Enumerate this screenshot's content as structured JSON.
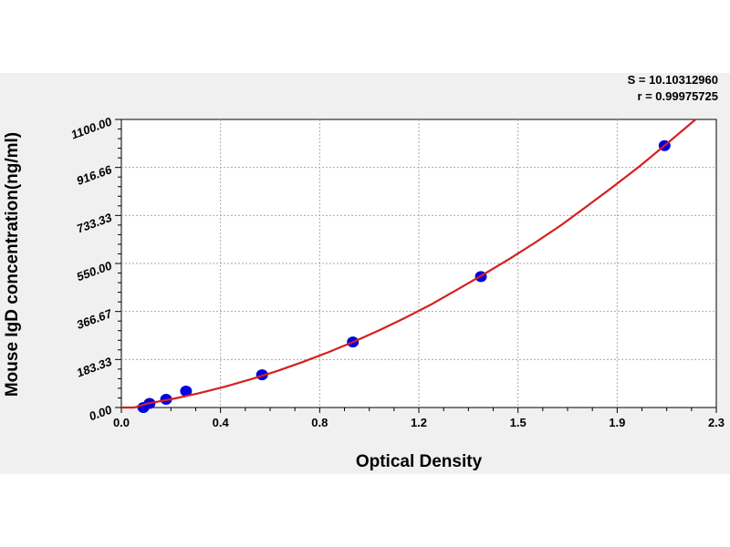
{
  "chart_data": {
    "type": "scatter",
    "title": "",
    "xlabel": "Optical Density",
    "ylabel": "Mouse IgD concentration(ng/ml)",
    "xlim": [
      0,
      2.3
    ],
    "ylim": [
      0,
      1100
    ],
    "grid": true,
    "x_tick_values": [
      0,
      0.3833,
      0.7667,
      1.15,
      1.5333,
      1.9167,
      2.3
    ],
    "x_tick_labels": [
      "0.0",
      "0.4",
      "0.8",
      "1.2",
      "1.5",
      "1.9",
      "2.3"
    ],
    "y_tick_values": [
      0,
      183.33,
      366.67,
      550,
      733.33,
      916.66,
      1100
    ],
    "y_tick_labels": [
      "0.00",
      "183.33",
      "366.67",
      "550.00",
      "733.33",
      "916.66",
      "1100.00"
    ],
    "stats": [
      "S = 10.10312960",
      "r = 0.99975725"
    ],
    "series": [
      {
        "name": "standards",
        "type": "scatter",
        "color": "#0000e0",
        "x": [
          0.085,
          0.109,
          0.173,
          0.25,
          0.544,
          0.895,
          1.39,
          2.1
        ],
        "y": [
          0,
          15.6,
          31.25,
          62.5,
          125,
          250,
          500,
          1000
        ]
      },
      {
        "name": "fit-curve",
        "type": "line",
        "color": "#d42020",
        "x": [
          0,
          0.05,
          0.1,
          0.2,
          0.3,
          0.4,
          0.5,
          0.6,
          0.7,
          0.8,
          0.9,
          1.0,
          1.1,
          1.2,
          1.3,
          1.4,
          1.5,
          1.6,
          1.7,
          1.8,
          1.9,
          2.0,
          2.1,
          2.22
        ],
        "y": [
          0,
          0,
          14.9,
          33.1,
          54.6,
          79.4,
          107.4,
          138.7,
          173.2,
          211,
          252.1,
          296.4,
          343.9,
          394.9,
          451,
          508.1,
          567.1,
          630,
          696.2,
          768.9,
          842.3,
          918.5,
          1000,
          1100
        ]
      }
    ]
  }
}
